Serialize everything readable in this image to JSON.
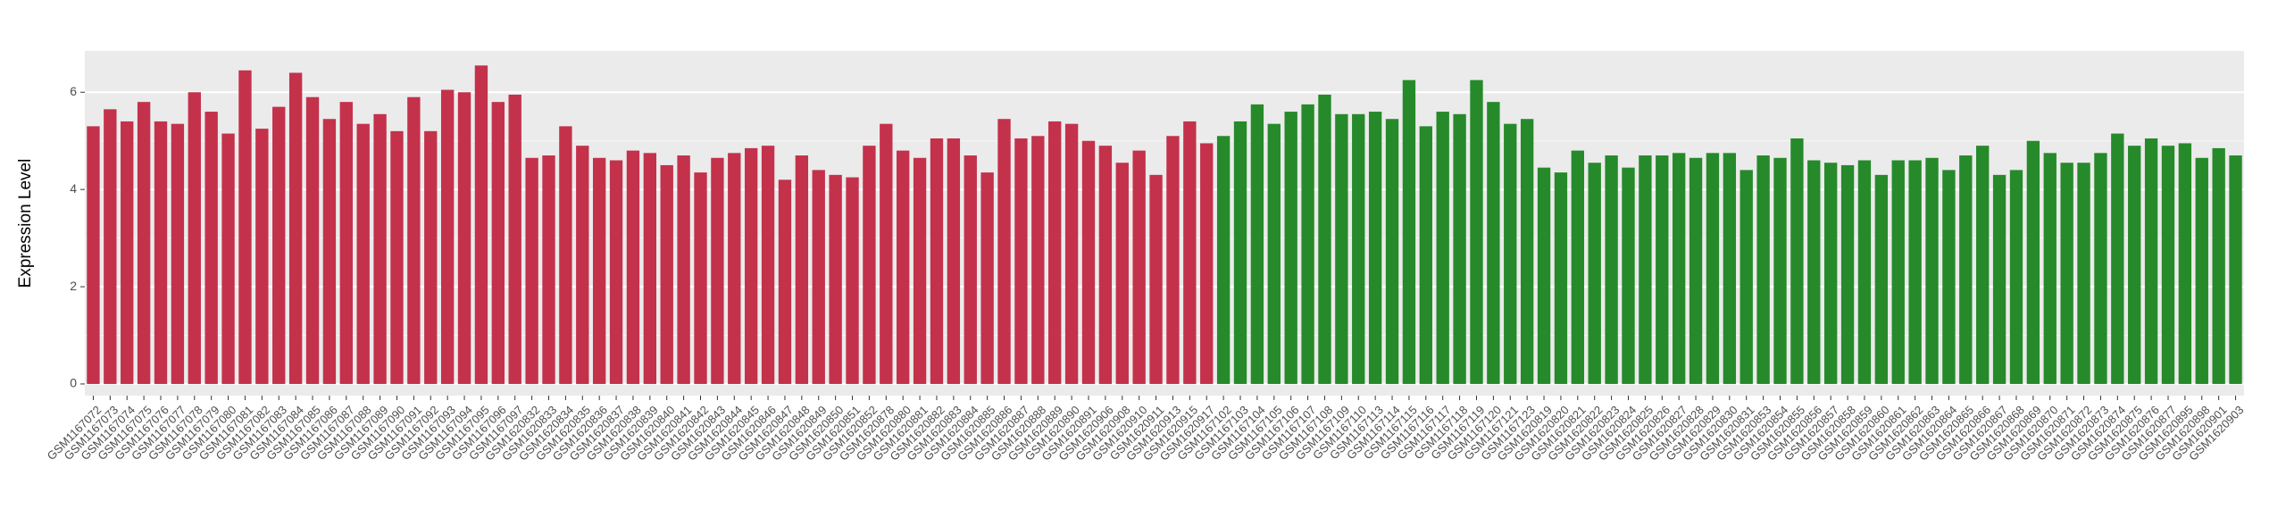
{
  "chart_data": {
    "type": "bar",
    "y_label": "Expression Level",
    "ylim": [
      -0.24,
      6.85
    ],
    "yticks": [
      0,
      2,
      4,
      6
    ],
    "yminorticks": [
      1,
      3,
      5
    ],
    "grid": true,
    "series": [
      {
        "color": "#c4314b",
        "categories": [
          "GSM1167072",
          "GSM1167073",
          "GSM1167074",
          "GSM1167075",
          "GSM1167076",
          "GSM1167077",
          "GSM1167078",
          "GSM1167079",
          "GSM1167080",
          "GSM1167081",
          "GSM1167082",
          "GSM1167083",
          "GSM1167084",
          "GSM1167085",
          "GSM1167086",
          "GSM1167087",
          "GSM1167088",
          "GSM1167089",
          "GSM1167090",
          "GSM1167091",
          "GSM1167092",
          "GSM1167093",
          "GSM1167094",
          "GSM1167095",
          "GSM1167096",
          "GSM1167097",
          "GSM1620832",
          "GSM1620833",
          "GSM1620834",
          "GSM1620835",
          "GSM1620836",
          "GSM1620837",
          "GSM1620838",
          "GSM1620839",
          "GSM1620840",
          "GSM1620841",
          "GSM1620842",
          "GSM1620843",
          "GSM1620844",
          "GSM1620845",
          "GSM1620846",
          "GSM1620847",
          "GSM1620848",
          "GSM1620849",
          "GSM1620850",
          "GSM1620851",
          "GSM1620852",
          "GSM1620878",
          "GSM1620880",
          "GSM1620881",
          "GSM1620882",
          "GSM1620883",
          "GSM1620884",
          "GSM1620885",
          "GSM1620886",
          "GSM1620887",
          "GSM1620888",
          "GSM1620889",
          "GSM1620890",
          "GSM1620891",
          "GSM1620906",
          "GSM1620908",
          "GSM1620910",
          "GSM1620911",
          "GSM1620913",
          "GSM1620915",
          "GSM1620917"
        ],
        "values": [
          5.3,
          5.65,
          5.4,
          5.8,
          5.4,
          5.35,
          6.0,
          5.6,
          5.15,
          6.45,
          5.25,
          5.7,
          6.4,
          5.9,
          5.45,
          5.8,
          5.35,
          5.55,
          5.2,
          5.9,
          5.2,
          6.05,
          6.0,
          6.55,
          5.8,
          5.95,
          4.65,
          4.7,
          5.3,
          4.9,
          4.65,
          4.6,
          4.8,
          4.75,
          4.5,
          4.7,
          4.35,
          4.65,
          4.75,
          4.85,
          4.9,
          4.2,
          4.7,
          4.4,
          4.3,
          4.25,
          4.9,
          5.35,
          4.8,
          4.65,
          5.05,
          5.05,
          4.7,
          4.35,
          5.45,
          5.05,
          5.1,
          5.4,
          5.35,
          5.0,
          4.9,
          4.55,
          4.8,
          4.3,
          5.1,
          5.4,
          4.95
        ]
      },
      {
        "color": "#268a2a",
        "categories": [
          "GSM1167102",
          "GSM1167103",
          "GSM1167104",
          "GSM1167105",
          "GSM1167106",
          "GSM1167107",
          "GSM1167108",
          "GSM1167109",
          "GSM1167110",
          "GSM1167113",
          "GSM1167114",
          "GSM1167115",
          "GSM1167116",
          "GSM1167117",
          "GSM1167118",
          "GSM1167119",
          "GSM1167120",
          "GSM1167121",
          "GSM1167123",
          "GSM1620819",
          "GSM1620820",
          "GSM1620821",
          "GSM1620822",
          "GSM1620823",
          "GSM1620824",
          "GSM1620825",
          "GSM1620826",
          "GSM1620827",
          "GSM1620828",
          "GSM1620829",
          "GSM1620830",
          "GSM1620831",
          "GSM1620853",
          "GSM1620854",
          "GSM1620855",
          "GSM1620856",
          "GSM1620857",
          "GSM1620858",
          "GSM1620859",
          "GSM1620860",
          "GSM1620861",
          "GSM1620862",
          "GSM1620863",
          "GSM1620864",
          "GSM1620865",
          "GSM1620866",
          "GSM1620867",
          "GSM1620868",
          "GSM1620869",
          "GSM1620870",
          "GSM1620871",
          "GSM1620872",
          "GSM1620873",
          "GSM1620874",
          "GSM1620875",
          "GSM1620876",
          "GSM1620877",
          "GSM1620895",
          "GSM1620898",
          "GSM1620901",
          "GSM1620903"
        ],
        "values": [
          5.1,
          5.4,
          5.75,
          5.35,
          5.6,
          5.75,
          5.95,
          5.55,
          5.55,
          5.6,
          5.45,
          6.25,
          5.3,
          5.6,
          5.55,
          6.25,
          5.8,
          5.35,
          5.45,
          4.45,
          4.35,
          4.8,
          4.55,
          4.7,
          4.45,
          4.7,
          4.7,
          4.75,
          4.65,
          4.75,
          4.75,
          4.4,
          4.7,
          4.65,
          5.05,
          4.6,
          4.55,
          4.5,
          4.6,
          4.3,
          4.6,
          4.6,
          4.65,
          4.4,
          4.7,
          4.9,
          4.3,
          4.4,
          5.0,
          4.75,
          4.55,
          4.55,
          4.75,
          5.15,
          4.9,
          5.05,
          4.9,
          4.95,
          4.65,
          4.85,
          4.7
        ]
      }
    ]
  }
}
